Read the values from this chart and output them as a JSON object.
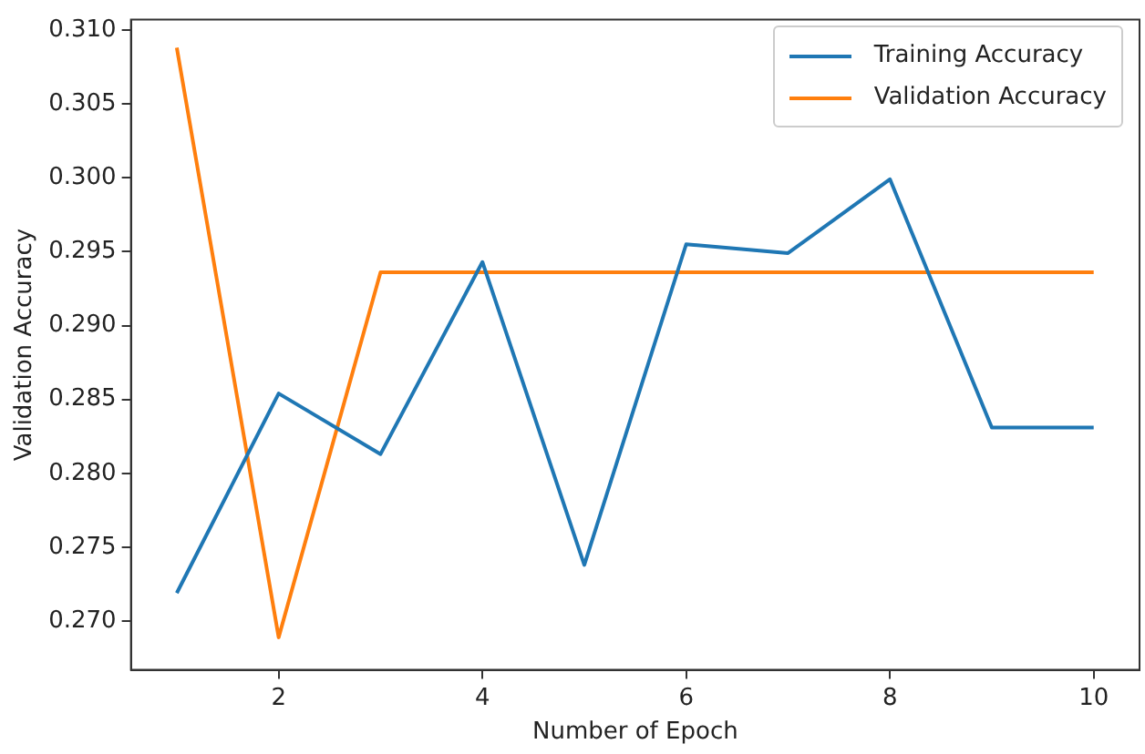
{
  "chart_data": {
    "type": "line",
    "xlabel": "Number of Epoch",
    "ylabel": "Validation Accuracy",
    "x": [
      1,
      2,
      3,
      4,
      5,
      6,
      7,
      8,
      9,
      10
    ],
    "series": [
      {
        "name": "Training Accuracy",
        "color": "#1f77b4",
        "values": [
          0.2719,
          0.2854,
          0.2813,
          0.2943,
          0.2738,
          0.2955,
          0.2949,
          0.2999,
          0.2831,
          0.2831
        ]
      },
      {
        "name": "Validation Accuracy",
        "color": "#ff7f0e",
        "values": [
          0.3088,
          0.2689,
          0.2936,
          0.2936,
          0.2936,
          0.2936,
          0.2936,
          0.2936,
          0.2936,
          0.2936
        ]
      }
    ],
    "xlim": [
      0.55,
      10.45
    ],
    "xticks": [
      2,
      4,
      6,
      8,
      10
    ],
    "ylim": [
      0.2667,
      0.3107
    ],
    "yticks": [
      {
        "value": 0.27,
        "label": "0.270"
      },
      0.275,
      {
        "value": 0.28,
        "label": "0.280"
      },
      0.285,
      {
        "value": 0.29,
        "label": "0.290"
      },
      0.295,
      {
        "value": 0.3,
        "label": "0.300"
      },
      0.305,
      {
        "value": 0.31,
        "label": "0.310"
      }
    ],
    "grid": false,
    "legend": "top right",
    "marker": "none",
    "line_style": "solid"
  }
}
